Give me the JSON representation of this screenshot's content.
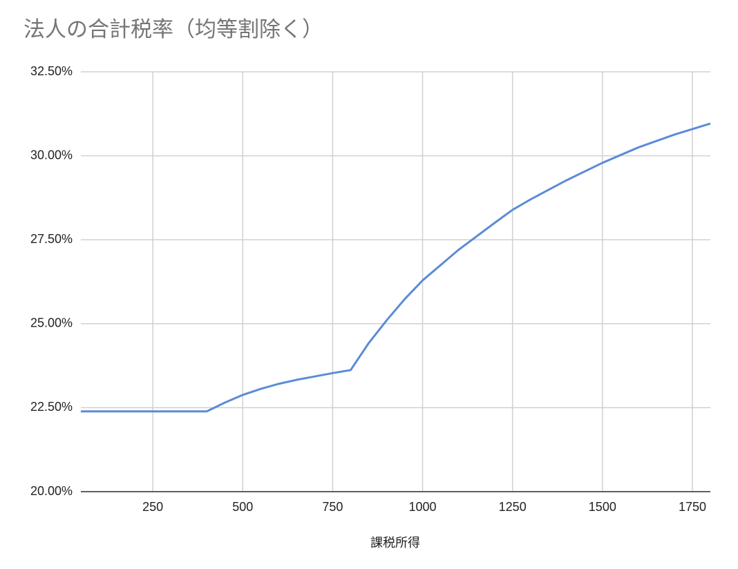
{
  "chart_data": {
    "type": "line",
    "title": "法人の合計税率（均等割除く）",
    "x_label": "課税所得",
    "x": [
      50,
      400,
      450,
      500,
      550,
      600,
      650,
      700,
      750,
      800,
      850,
      900,
      950,
      1000,
      1100,
      1200,
      1250,
      1300,
      1400,
      1500,
      1600,
      1700,
      1800
    ],
    "series": [
      {
        "name": "法人の合計税率",
        "color": "#5b8bd6",
        "values": [
          22.39,
          22.39,
          22.65,
          22.88,
          23.06,
          23.21,
          23.33,
          23.43,
          23.53,
          23.62,
          24.42,
          25.1,
          25.73,
          26.29,
          27.2,
          28.0,
          28.39,
          28.7,
          29.27,
          29.79,
          30.25,
          30.63,
          30.96
        ]
      }
    ],
    "xlim": [
      50,
      1800
    ],
    "xticks": [
      250,
      500,
      750,
      1000,
      1250,
      1500,
      1750
    ],
    "ylim": [
      20,
      32.5
    ],
    "yticks": [
      {
        "value": 20,
        "label": "20.00%"
      },
      {
        "value": 22.5,
        "label": "22.50%"
      },
      {
        "value": 25,
        "label": "25.00%"
      },
      {
        "value": 27.5,
        "label": "27.50%"
      },
      {
        "value": 30,
        "label": "30.00%"
      },
      {
        "value": 32.5,
        "label": "32.50%"
      }
    ],
    "grid": true
  }
}
